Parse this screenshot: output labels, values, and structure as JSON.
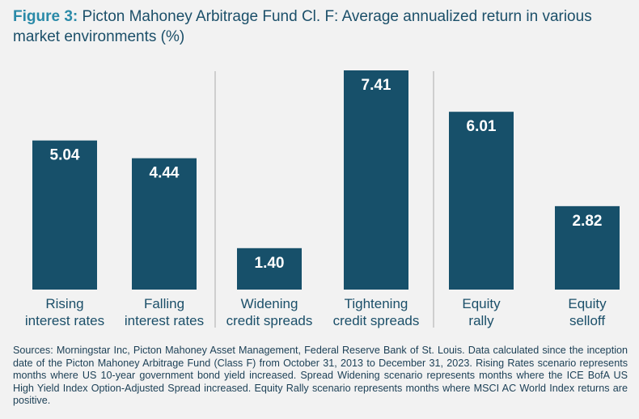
{
  "title": {
    "lead": "Figure 3:",
    "text": "Picton Mahoney Arbitrage Fund Cl. F: Average annualized return in various market environments (%)"
  },
  "chart_data": {
    "type": "bar",
    "title": "Figure 3: Picton Mahoney Arbitrage Fund Cl. F: Average annualized return in various market environments (%)",
    "xlabel": "",
    "ylabel": "",
    "ylim": [
      0,
      7.41
    ],
    "grid": false,
    "categories": [
      [
        "Rising",
        "interest rates"
      ],
      [
        "Falling",
        "interest rates"
      ],
      [
        "Widening",
        "credit spreads"
      ],
      [
        "Tightening",
        "credit spreads"
      ],
      [
        "Equity",
        "rally"
      ],
      [
        "Equity",
        "selloff"
      ]
    ],
    "values": [
      5.04,
      4.44,
      1.4,
      7.41,
      6.01,
      2.82
    ],
    "value_labels": [
      "5.04",
      "4.44",
      "1.40",
      "7.41",
      "6.01",
      "2.82"
    ],
    "groups": [
      [
        0,
        1
      ],
      [
        2,
        3
      ],
      [
        4,
        5
      ]
    ],
    "bar_color": "#17506a",
    "label_color": "#ffffff",
    "divider_color": "#cfcfcf",
    "text_color": "#1b4f69"
  },
  "sources": "Sources: Morningstar Inc, Picton Mahoney Asset Management, Federal Reserve Bank of St. Louis. Data calculated since the inception date of the Picton Mahoney Arbitrage Fund (Class F) from October 31, 2013 to December 31, 2023. Rising Rates scenario represents months where US 10-year government bond yield increased. Spread Widening scenario represents months where the ICE BofA US High Yield Index Option-Adjusted Spread increased. Equity Rally scenario represents months where MSCI AC World Index returns are positive."
}
